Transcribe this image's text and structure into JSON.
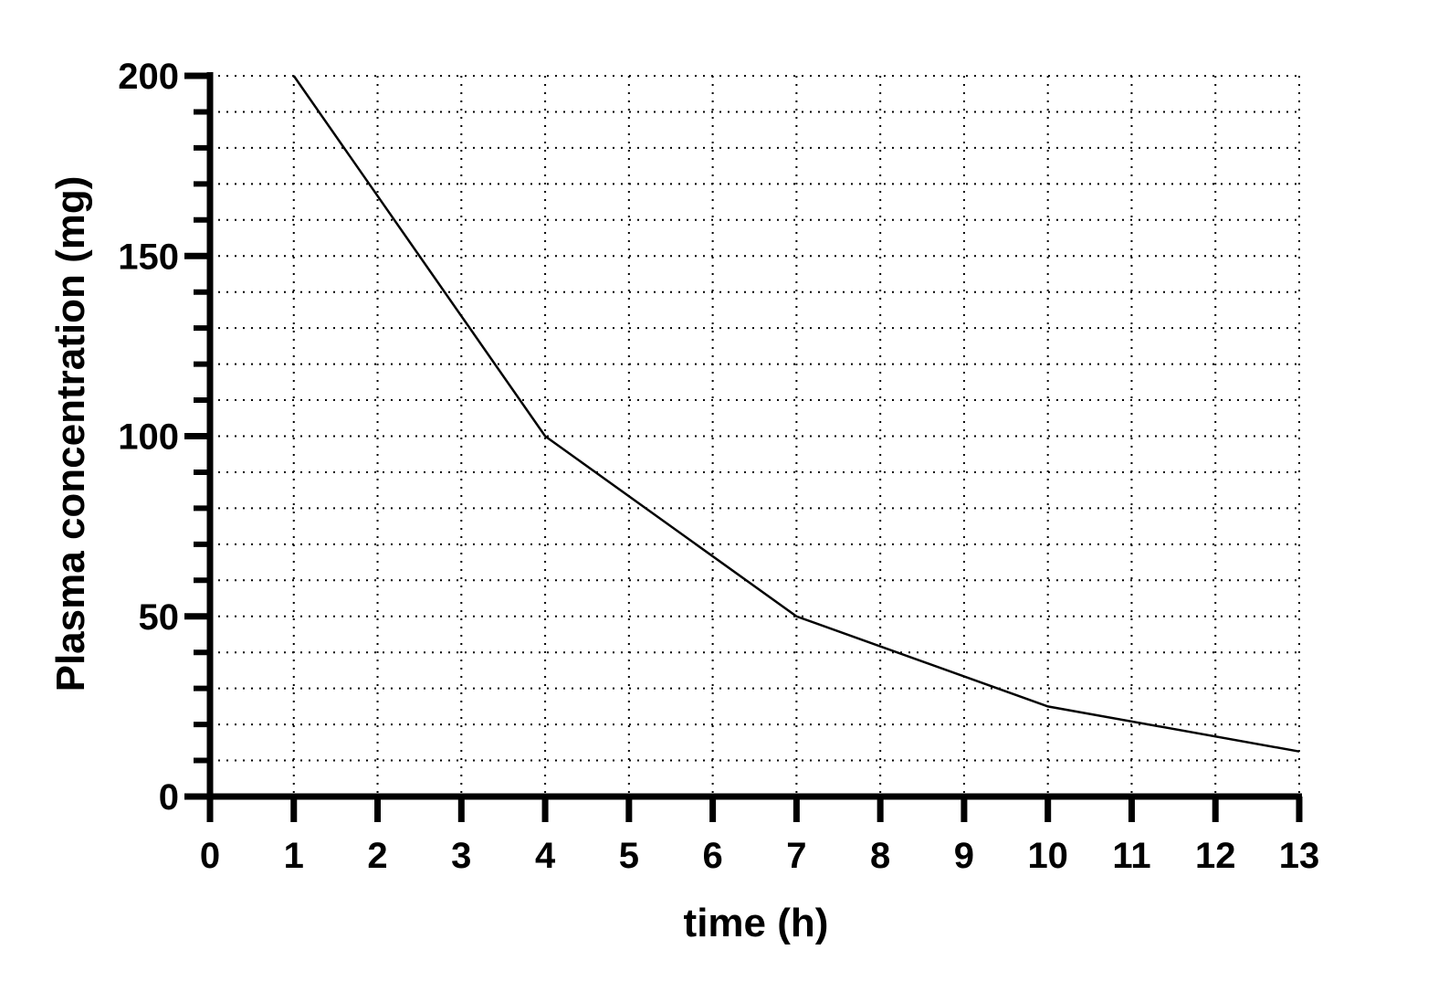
{
  "chart_data": {
    "type": "line",
    "title": "",
    "xlabel": "time (h)",
    "ylabel": "Plasma concentration  (mg)",
    "xlim": [
      0,
      13
    ],
    "ylim": [
      0,
      200
    ],
    "x_ticks": [
      0,
      1,
      2,
      3,
      4,
      5,
      6,
      7,
      8,
      9,
      10,
      11,
      12,
      13
    ],
    "y_ticks": [
      0,
      50,
      100,
      150,
      200
    ],
    "y_minor_step": 10,
    "grid": true,
    "grid_style": "dotted",
    "series": [
      {
        "color": "#000000",
        "x": [
          1,
          4,
          7,
          10,
          13
        ],
        "y": [
          200,
          100,
          50,
          25,
          12.5
        ]
      }
    ]
  }
}
